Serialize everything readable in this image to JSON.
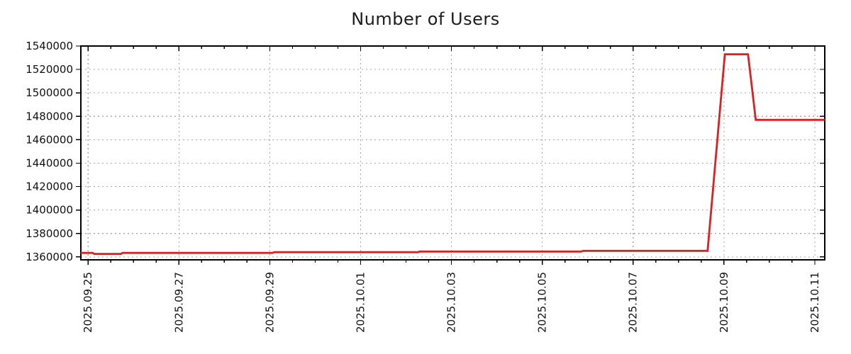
{
  "chart_data": {
    "type": "line",
    "title": "Number of Users",
    "legend_position": "none",
    "grid": true,
    "x_axis": {
      "ticks": [
        {
          "label": "2025.09.25",
          "day": 0
        },
        {
          "label": "2025.09.27",
          "day": 2
        },
        {
          "label": "2025.09.29",
          "day": 4
        },
        {
          "label": "2025.10.01",
          "day": 6
        },
        {
          "label": "2025.10.03",
          "day": 8
        },
        {
          "label": "2025.10.05",
          "day": 10
        },
        {
          "label": "2025.10.07",
          "day": 12
        },
        {
          "label": "2025.10.09",
          "day": 14
        },
        {
          "label": "2025.10.11",
          "day": 16
        }
      ],
      "minor_tick_step_days": 0.5,
      "range_days": [
        -0.16,
        16.22
      ]
    },
    "y_axis": {
      "tick_values": [
        1360000,
        1380000,
        1400000,
        1420000,
        1440000,
        1460000,
        1480000,
        1500000,
        1520000,
        1540000
      ],
      "range": [
        1357500,
        1540000
      ]
    },
    "series": [
      {
        "name": "Number of Users",
        "color": "#d62222",
        "points": [
          [
            -0.16,
            1363400
          ],
          [
            0.1,
            1363400
          ],
          [
            0.14,
            1362500
          ],
          [
            0.72,
            1362500
          ],
          [
            0.76,
            1363400
          ],
          [
            4.06,
            1363400
          ],
          [
            4.1,
            1364000
          ],
          [
            7.26,
            1364000
          ],
          [
            7.3,
            1364600
          ],
          [
            10.86,
            1364600
          ],
          [
            10.9,
            1365200
          ],
          [
            13.64,
            1365200
          ],
          [
            14.02,
            1532900
          ],
          [
            14.53,
            1532900
          ],
          [
            14.7,
            1477000
          ],
          [
            16.22,
            1477000
          ]
        ]
      }
    ]
  },
  "style_colors": {
    "grid": "#a8a8a8",
    "axis": "#000000",
    "tick_text": "#111111",
    "background": "#ffffff"
  }
}
